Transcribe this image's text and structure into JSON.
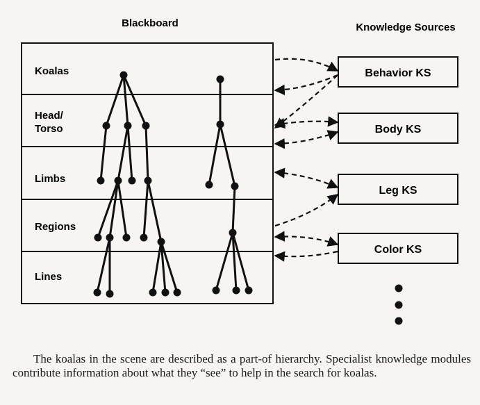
{
  "headers": {
    "blackboard": "Blackboard",
    "knowledge_sources": "Knowledge Sources"
  },
  "levels": [
    "Koalas",
    "Head/\nTorso",
    "Limbs",
    "Regions",
    "Lines"
  ],
  "knowledge_sources": [
    "Behavior KS",
    "Body KS",
    "Leg KS",
    "Color KS"
  ],
  "caption": "The koalas in the scene are described as a part-of hierarchy. Specialist knowledge modules contribute information about what they “see” to help in the search for koalas."
}
